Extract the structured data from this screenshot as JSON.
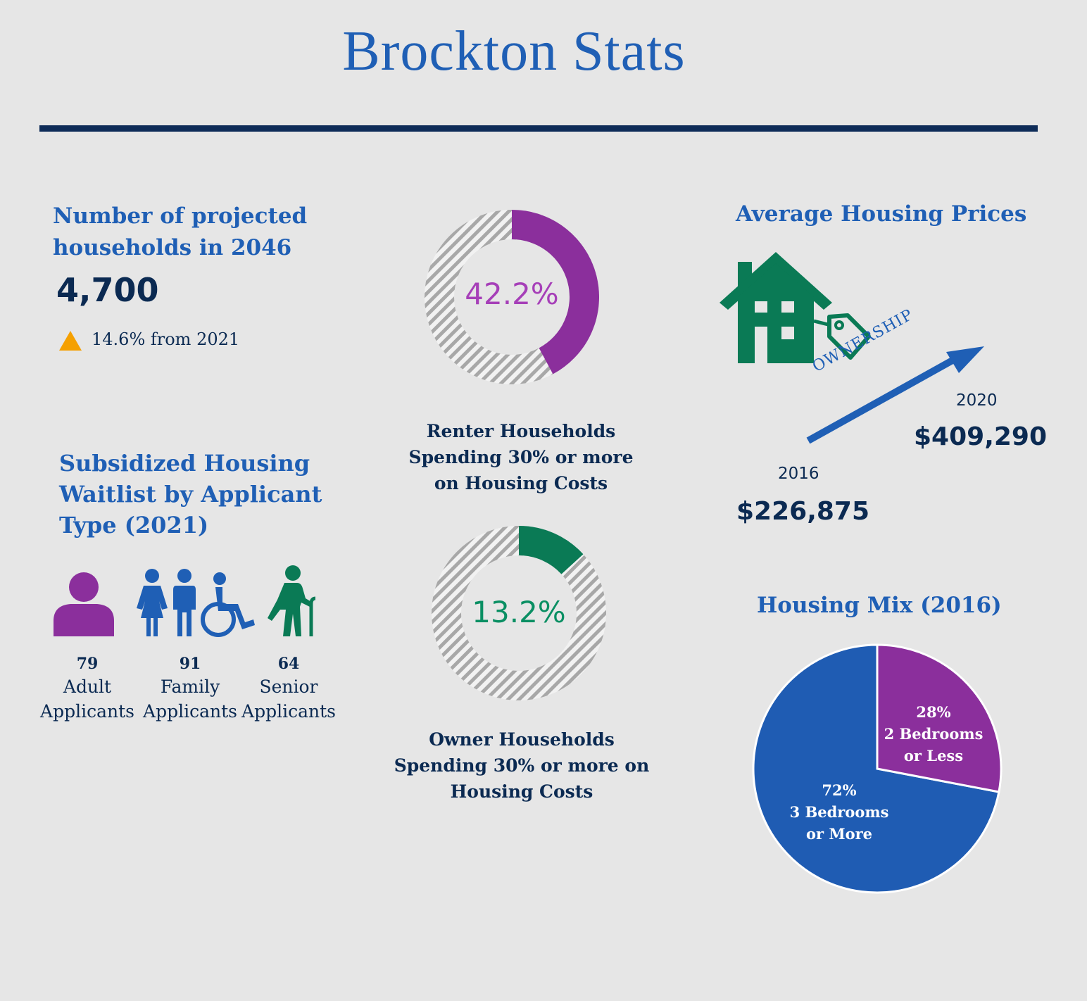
{
  "title": "Brockton Stats",
  "projected": {
    "heading": "Number of projected households in 2046",
    "value": "4,700",
    "change": "14.6% from 2021"
  },
  "waitlist": {
    "heading": "Subsidized Housing Waitlist by Applicant Type (2021)",
    "applicants": [
      {
        "count": "79",
        "label1": "Adult",
        "label2": "Applicants",
        "icon": "person-icon",
        "color": "#8b2f9c"
      },
      {
        "count": "91",
        "label1": "Family",
        "label2": "Applicants",
        "icon": "family-icon",
        "color": "#1f5fb5"
      },
      {
        "count": "64",
        "label1": "Senior",
        "label2": "Applicants",
        "icon": "senior-icon",
        "color": "#0a7a55"
      }
    ]
  },
  "renter": {
    "pct": "42.2%",
    "label1": "Renter Households",
    "label2": "Spending 30% or more",
    "label3": "on Housing Costs",
    "color": "#8b2f9c"
  },
  "owner": {
    "pct": "13.2%",
    "label1": "Owner Households",
    "label2": "Spending 30% or more on",
    "label3": "Housing Costs",
    "color": "#0a7a55"
  },
  "prices": {
    "heading": "Average Housing Prices",
    "arrow_label": "OWNERSHIP",
    "year_start": "2016",
    "price_start": "$226,875",
    "year_end": "2020",
    "price_end": "$409,290",
    "house_color": "#0a7a55",
    "arrow_color": "#1f5fb5"
  },
  "mix": {
    "heading": "Housing Mix (2016)",
    "slice_small_pct": "28%",
    "slice_small_line1": "2 Bedrooms",
    "slice_small_line2": "or Less",
    "slice_large_pct": "72%",
    "slice_large_line1": "3 Bedrooms",
    "slice_large_line2": "or More"
  },
  "chart_data": [
    {
      "type": "pie",
      "title": "",
      "categories": [
        "Renter Households Spending 30% or more on Housing Costs"
      ],
      "values": [
        42.2
      ],
      "colors": [
        "#8b2f9c"
      ]
    },
    {
      "type": "pie",
      "title": "",
      "categories": [
        "Owner Households Spending 30% or more on Housing Costs"
      ],
      "values": [
        13.2
      ],
      "colors": [
        "#0a7a55"
      ]
    },
    {
      "type": "pie",
      "title": "Housing Mix (2016)",
      "categories": [
        "2 Bedrooms or Less",
        "3 Bedrooms or More"
      ],
      "values": [
        28,
        72
      ],
      "colors": [
        "#8b2f9c",
        "#1f5fb5"
      ]
    }
  ]
}
